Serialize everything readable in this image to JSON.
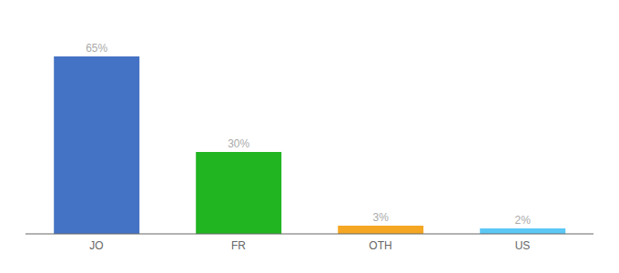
{
  "chart_data": {
    "type": "bar",
    "categories": [
      "JO",
      "FR",
      "OTH",
      "US"
    ],
    "values": [
      65,
      30,
      3,
      2
    ],
    "value_labels": [
      "65%",
      "30%",
      "3%",
      "2%"
    ],
    "colors": [
      "#4472c4",
      "#21b521",
      "#f5a623",
      "#5bc8f5"
    ],
    "ylim": [
      0,
      75
    ],
    "data_labels": true,
    "tick_labels": "x",
    "grid": false
  }
}
